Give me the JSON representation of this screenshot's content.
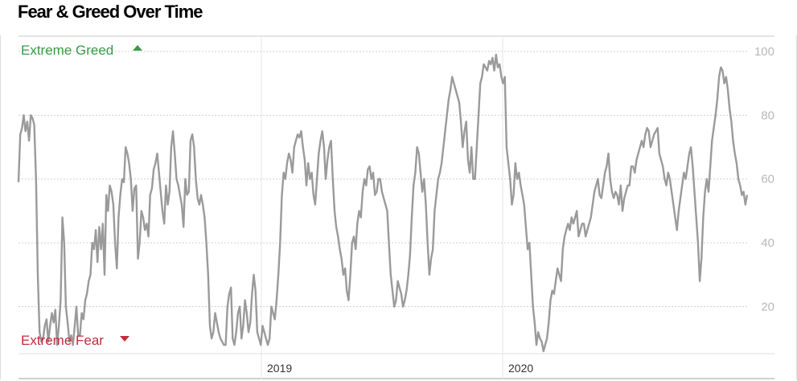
{
  "header": {
    "title": "Fear & Greed Over Time"
  },
  "colors": {
    "line": "#9a9a9a",
    "grid": "#cfcfcf",
    "greed": "#3a9a48",
    "fear": "#c42b3c"
  },
  "chart_data": {
    "type": "line",
    "title": "Fear & Greed Over Time",
    "ylim": [
      0,
      100
    ],
    "yticks": [
      "20",
      "40",
      "60",
      "80",
      "100"
    ],
    "ytick_values": [
      20,
      40,
      60,
      80,
      100
    ],
    "xticks": [
      "2019",
      "2020"
    ],
    "annotations": {
      "top": "Extreme Greed",
      "bottom": "Extreme Fear"
    },
    "grid": true,
    "series": [
      {
        "values": [
          59,
          74,
          76,
          80,
          75,
          78,
          72,
          80,
          79,
          77,
          60,
          30,
          12,
          9,
          10,
          14,
          16,
          9,
          14,
          18,
          15,
          19,
          8,
          14,
          22,
          48,
          40,
          20,
          15,
          9,
          11,
          8,
          14,
          20,
          11,
          11,
          18,
          16,
          22,
          24,
          28,
          30,
          40,
          38,
          44,
          34,
          45,
          38,
          46,
          30,
          55,
          50,
          58,
          56,
          52,
          40,
          32,
          48,
          55,
          60,
          59,
          70,
          68,
          65,
          60,
          50,
          57,
          58,
          35,
          40,
          50,
          48,
          44,
          46,
          42,
          55,
          57,
          63,
          65,
          68,
          62,
          56,
          50,
          46,
          58,
          52,
          56,
          70,
          75,
          68,
          60,
          58,
          55,
          52,
          45,
          60,
          55,
          56,
          72,
          74,
          70,
          60,
          54,
          52,
          55,
          52,
          48,
          40,
          30,
          14,
          10,
          12,
          18,
          15,
          12,
          10,
          9,
          8,
          8,
          20,
          24,
          26,
          10,
          8,
          12,
          18,
          20,
          10,
          14,
          22,
          18,
          12,
          15,
          24,
          30,
          25,
          12,
          10,
          8,
          14,
          12,
          10,
          8,
          10,
          20,
          18,
          16,
          22,
          30,
          40,
          55,
          62,
          60,
          65,
          68,
          66,
          62,
          70,
          72,
          74,
          73,
          75,
          70,
          66,
          58,
          65,
          60,
          62,
          55,
          52,
          60,
          68,
          72,
          75,
          70,
          60,
          66,
          70,
          72,
          60,
          50,
          45,
          42,
          38,
          35,
          30,
          32,
          25,
          22,
          30,
          40,
          42,
          38,
          46,
          50,
          48,
          56,
          60,
          58,
          63,
          64,
          60,
          62,
          55,
          56,
          60,
          60,
          56,
          54,
          52,
          50,
          40,
          30,
          25,
          20,
          22,
          28,
          26,
          24,
          20,
          22,
          25,
          30,
          36,
          48,
          58,
          62,
          70,
          68,
          62,
          56,
          60,
          52,
          40,
          30,
          35,
          38,
          50,
          55,
          60,
          62,
          65,
          70,
          75,
          80,
          85,
          88,
          92,
          90,
          88,
          86,
          84,
          78,
          70,
          75,
          78,
          66,
          62,
          70,
          60,
          60,
          70,
          80,
          90,
          92,
          96,
          95,
          94,
          97,
          96,
          98,
          94,
          99,
          95,
          96,
          92,
          90,
          92,
          70,
          65,
          60,
          52,
          55,
          65,
          60,
          62,
          58,
          55,
          52,
          45,
          38,
          40,
          30,
          20,
          15,
          8,
          12,
          10,
          9,
          6,
          8,
          10,
          15,
          22,
          25,
          24,
          28,
          32,
          30,
          28,
          38,
          42,
          44,
          46,
          44,
          48,
          46,
          48,
          50,
          42,
          44,
          46,
          46,
          42,
          44,
          46,
          48,
          52,
          56,
          58,
          60,
          55,
          54,
          58,
          62,
          64,
          68,
          60,
          56,
          54,
          56,
          55,
          52,
          58,
          50,
          54,
          56,
          58,
          58,
          64,
          64,
          62,
          66,
          68,
          70,
          72,
          70,
          74,
          76,
          75,
          70,
          72,
          74,
          75,
          76,
          68,
          66,
          64,
          60,
          58,
          62,
          60,
          56,
          52,
          48,
          44,
          50,
          54,
          58,
          62,
          60,
          64,
          68,
          70,
          64,
          56,
          48,
          40,
          28,
          35,
          48,
          56,
          60,
          56,
          64,
          72,
          76,
          80,
          85,
          92,
          95,
          94,
          90,
          92,
          88,
          82,
          78,
          72,
          68,
          65,
          60,
          58,
          55,
          56,
          52,
          55
        ]
      }
    ]
  }
}
